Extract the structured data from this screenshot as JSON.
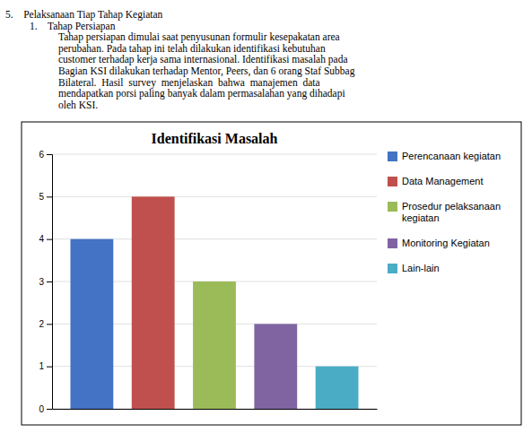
{
  "chart_data": {
    "type": "bar",
    "title": "Identifikasi Masalah",
    "categories": [
      "Perencanaan kegiatan",
      "Data Management",
      "Prosedur pelaksanaan\nkegiatan",
      "Monitoring Kegiatan",
      "Lain-lain"
    ],
    "values": [
      4,
      5,
      3,
      2,
      1
    ],
    "colors": [
      "#4472C4",
      "#C0504D",
      "#9BBB59",
      "#8064A2",
      "#4BACC6"
    ],
    "ylim": [
      0,
      6
    ],
    "yticks": [
      0,
      1,
      2,
      3,
      4,
      5,
      6
    ],
    "grid": true,
    "legend": "right",
    "tick_labels": "y",
    "annotations": [
      "5.    Pelaksanaan Tiap Tahap Kegiatan",
      "1.    Tahap Persiapan",
      "Tahap persiapan dimulai saat penyusunan formulir kesepakatan area",
      "perubahan. Pada tahap ini telah dilakukan identifikasi kebutuhan",
      "customer terhadap kerja sama internasional. Identifikasi masalah pada",
      "Bagian KSI dilakukan terhadap Mentor, Peers, dan 6 orang Staf Subbag",
      "Bilateral.  Hasil  survey  menjelaskan  bahwa  manajemen  data",
      "mendapatkan porsi paling banyak dalam permasalahan yang dihadapi",
      "oleh KSI."
    ]
  }
}
